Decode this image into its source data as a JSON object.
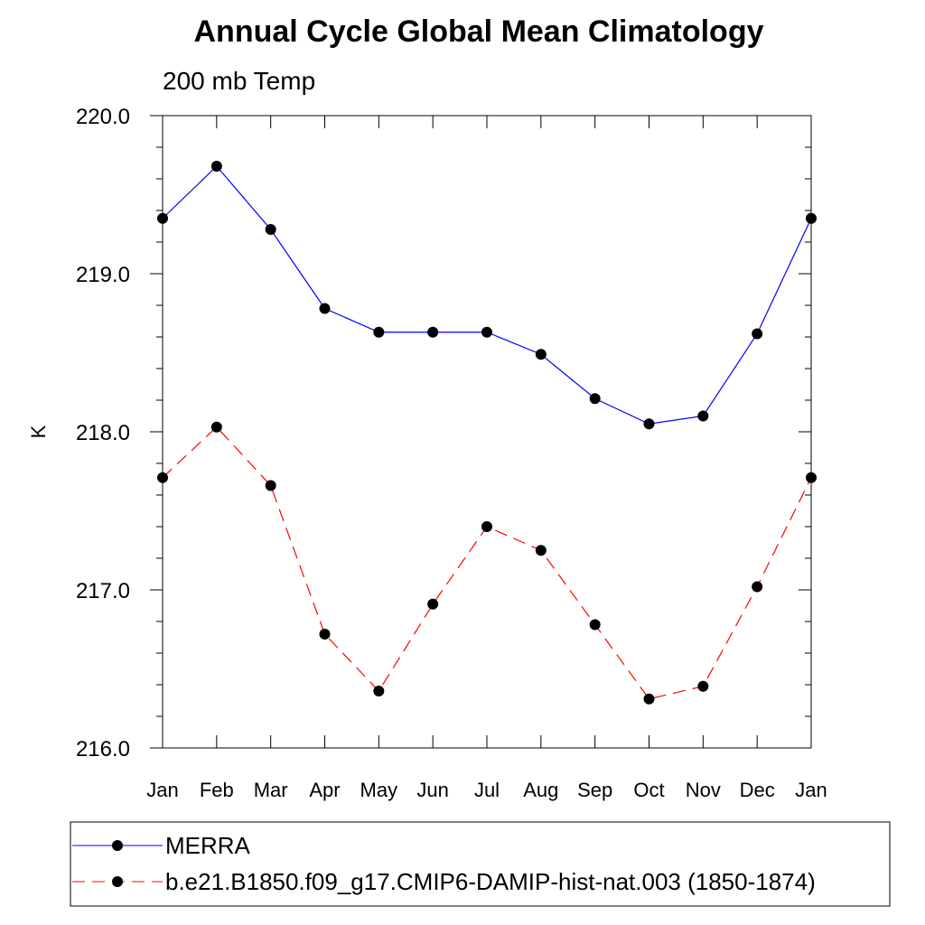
{
  "chart_data": {
    "type": "line",
    "title": "Annual Cycle Global Mean Climatology",
    "subtitle": "200 mb Temp",
    "xlabel": "",
    "ylabel": "K",
    "categories": [
      "Jan",
      "Feb",
      "Mar",
      "Apr",
      "May",
      "Jun",
      "Jul",
      "Aug",
      "Sep",
      "Oct",
      "Nov",
      "Dec",
      "Jan"
    ],
    "ylim": [
      216.0,
      220.0
    ],
    "yticks": [
      "216.0",
      "217.0",
      "218.0",
      "219.0",
      "220.0"
    ],
    "ytick_values": [
      216.0,
      217.0,
      218.0,
      219.0,
      220.0
    ],
    "yminor_step": 0.2,
    "grid": false,
    "legend_position": "bottom",
    "series": [
      {
        "name": "MERRA",
        "color": "#0000ff",
        "dash": "solid",
        "marker": "filled-circle",
        "values": [
          219.35,
          219.68,
          219.28,
          218.78,
          218.63,
          218.63,
          218.63,
          218.49,
          218.21,
          218.05,
          218.1,
          218.62,
          219.35
        ]
      },
      {
        "name": "b.e21.B1850.f09_g17.CMIP6-DAMIP-hist-nat.003 (1850-1874)",
        "color": "#ff0000",
        "dash": "dashed",
        "marker": "filled-circle",
        "values": [
          217.71,
          218.03,
          217.66,
          216.72,
          216.36,
          216.91,
          217.4,
          217.25,
          216.78,
          216.31,
          216.39,
          217.02,
          217.71
        ]
      }
    ]
  }
}
